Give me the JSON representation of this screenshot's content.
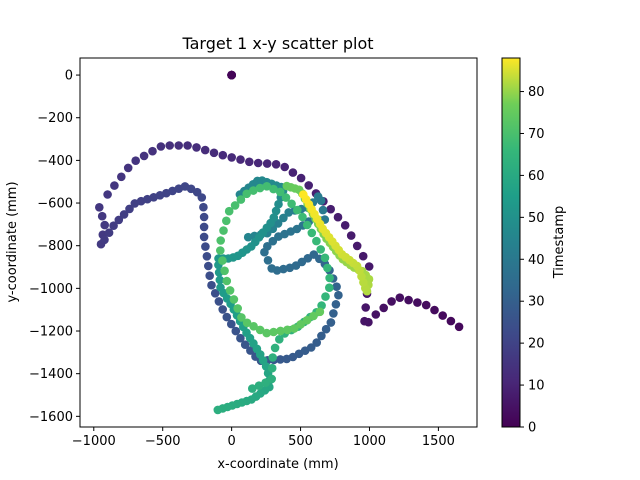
{
  "chart_data": {
    "type": "scatter",
    "title": "Target 1 x-y scatter plot",
    "xlabel": "x-coordinate (mm)",
    "ylabel": "y-coordinate (mm)",
    "xlim": [
      -1100,
      1780
    ],
    "ylim": [
      -1650,
      80
    ],
    "xticks": [
      -1000,
      -500,
      0,
      500,
      1000,
      1500
    ],
    "yticks": [
      0,
      -200,
      -400,
      -600,
      -800,
      -1000,
      -1200,
      -1400,
      -1600
    ],
    "xtick_labels": [
      "−1000",
      "−500",
      "0",
      "500",
      "1000",
      "1500"
    ],
    "ytick_labels": [
      "0",
      "−200",
      "−400",
      "−600",
      "−800",
      "−1000",
      "−1200",
      "−1400",
      "−1600"
    ],
    "grid": false,
    "colormap": "viridis",
    "colorbar": {
      "label": "Timestamp",
      "range": [
        0,
        88
      ],
      "ticks": [
        0,
        10,
        20,
        30,
        40,
        50,
        60,
        70,
        80
      ],
      "tick_labels": [
        "0",
        "10",
        "20",
        "30",
        "40",
        "50",
        "60",
        "70",
        "80"
      ]
    },
    "segments": [
      {
        "t0": 0,
        "t1": 1,
        "n": 6,
        "pts": [
          [
            0,
            0
          ],
          [
            0,
            0
          ]
        ]
      },
      {
        "t0": 2,
        "t1": 16,
        "n": 50,
        "pts": [
          [
            1650,
            -1180
          ],
          [
            1560,
            -1140
          ],
          [
            1420,
            -1080
          ],
          [
            1200,
            -1040
          ],
          [
            1050,
            -1120
          ],
          [
            960,
            -1180
          ],
          [
            1000,
            -900
          ],
          [
            820,
            -700
          ],
          [
            520,
            -490
          ],
          [
            360,
            -420
          ],
          [
            150,
            -410
          ],
          [
            -100,
            -370
          ],
          [
            -300,
            -330
          ],
          [
            -500,
            -330
          ],
          [
            -720,
            -410
          ],
          [
            -900,
            -560
          ]
        ]
      },
      {
        "t0": 16,
        "t1": 30,
        "n": 55,
        "pts": [
          [
            -960,
            -620
          ],
          [
            -920,
            -700
          ],
          [
            -950,
            -800
          ],
          [
            -850,
            -700
          ],
          [
            -700,
            -600
          ],
          [
            -500,
            -560
          ],
          [
            -330,
            -520
          ],
          [
            -220,
            -560
          ],
          [
            -200,
            -640
          ],
          [
            -200,
            -760
          ],
          [
            -150,
            -980
          ],
          [
            -50,
            -1120
          ],
          [
            80,
            -1250
          ],
          [
            200,
            -1340
          ],
          [
            420,
            -1330
          ],
          [
            600,
            -1270
          ],
          [
            720,
            -1160
          ]
        ]
      },
      {
        "t0": 30,
        "t1": 45,
        "n": 45,
        "pts": [
          [
            720,
            -1160
          ],
          [
            780,
            -1020
          ],
          [
            700,
            -900
          ],
          [
            600,
            -840
          ],
          [
            450,
            -900
          ],
          [
            300,
            -920
          ],
          [
            230,
            -820
          ],
          [
            330,
            -760
          ],
          [
            480,
            -720
          ],
          [
            600,
            -670
          ],
          [
            680,
            -690
          ],
          [
            640,
            -560
          ],
          [
            560,
            -620
          ],
          [
            420,
            -640
          ],
          [
            270,
            -740
          ],
          [
            120,
            -760
          ]
        ]
      },
      {
        "t0": 45,
        "t1": 62,
        "n": 60,
        "pts": [
          [
            60,
            -560
          ],
          [
            200,
            -490
          ],
          [
            380,
            -530
          ],
          [
            300,
            -680
          ],
          [
            150,
            -800
          ],
          [
            40,
            -850
          ],
          [
            -20,
            -860
          ],
          [
            -100,
            -860
          ],
          [
            -80,
            -1000
          ],
          [
            0,
            -1080
          ],
          [
            100,
            -1200
          ],
          [
            200,
            -1300
          ],
          [
            260,
            -1380
          ],
          [
            280,
            -1460
          ],
          [
            150,
            -1520
          ],
          [
            -100,
            -1570
          ]
        ]
      },
      {
        "t0": 62,
        "t1": 75,
        "n": 60,
        "pts": [
          [
            150,
            -1470
          ],
          [
            290,
            -1430
          ],
          [
            300,
            -1300
          ],
          [
            360,
            -1220
          ],
          [
            480,
            -1180
          ],
          [
            640,
            -1100
          ],
          [
            720,
            -980
          ],
          [
            680,
            -860
          ],
          [
            600,
            -760
          ],
          [
            500,
            -650
          ],
          [
            360,
            -550
          ],
          [
            250,
            -520
          ],
          [
            120,
            -550
          ],
          [
            -20,
            -640
          ],
          [
            -90,
            -800
          ],
          [
            -30,
            -980
          ],
          [
            80,
            -1150
          ],
          [
            250,
            -1210
          ],
          [
            450,
            -1190
          ],
          [
            640,
            -1110
          ]
        ]
      },
      {
        "t0": 75,
        "t1": 88,
        "n": 50,
        "pts": [
          [
            400,
            -520
          ],
          [
            500,
            -540
          ],
          [
            580,
            -640
          ],
          [
            680,
            -760
          ],
          [
            800,
            -860
          ],
          [
            880,
            -900
          ],
          [
            950,
            -920
          ],
          [
            1000,
            -960
          ],
          [
            980,
            -1020
          ],
          [
            920,
            -900
          ],
          [
            800,
            -840
          ],
          [
            660,
            -720
          ],
          [
            520,
            -560
          ]
        ]
      }
    ]
  }
}
